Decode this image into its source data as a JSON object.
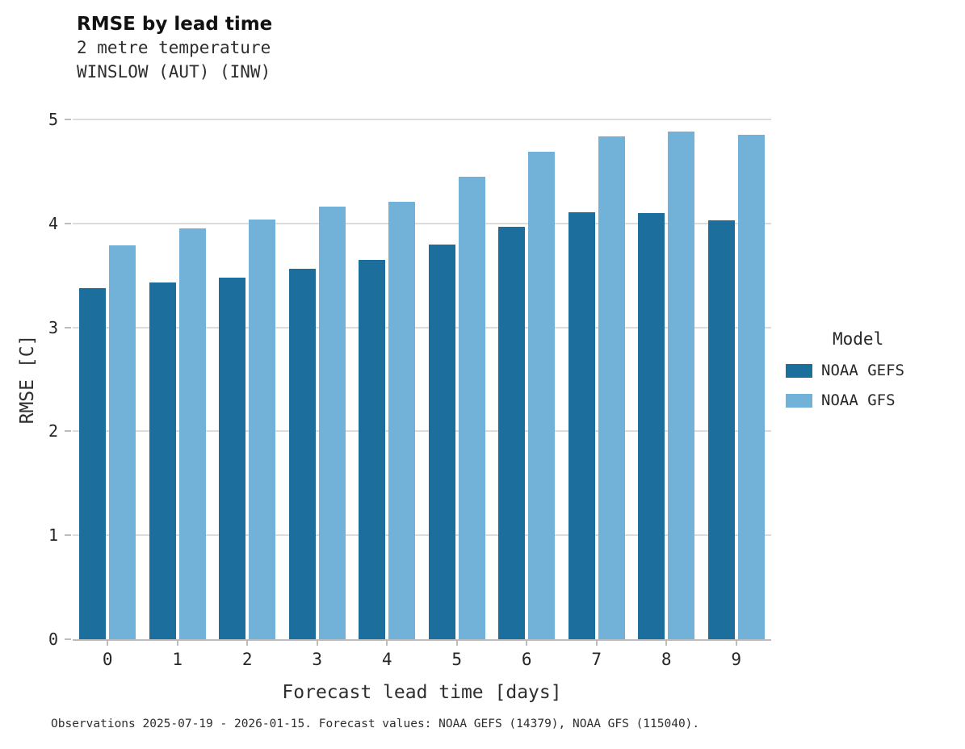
{
  "header": {
    "title": "RMSE by lead time",
    "subtitle_line1": "2 metre temperature",
    "subtitle_line2": "WINSLOW (AUT) (INW)"
  },
  "legend": {
    "title": "Model"
  },
  "caption": "Observations 2025-07-19 - 2026-01-15. Forecast values: NOAA GEFS (14379), NOAA GFS (115040).",
  "colors": {
    "gefs": "#1c6e9c",
    "gfs": "#72b2d8",
    "gridline": "#dcdcdc",
    "axis": "#bdbdbd"
  },
  "chart_data": {
    "type": "bar",
    "title": "RMSE by lead time",
    "subtitle": "2 metre temperature — WINSLOW (AUT) (INW)",
    "xlabel": "Forecast lead time [days]",
    "ylabel": "RMSE [C]",
    "categories": [
      "0",
      "1",
      "2",
      "3",
      "4",
      "5",
      "6",
      "7",
      "8",
      "9"
    ],
    "series": [
      {
        "name": "NOAA GEFS",
        "color": "#1c6e9c",
        "values": [
          3.38,
          3.43,
          3.48,
          3.56,
          3.65,
          3.8,
          3.97,
          4.11,
          4.1,
          4.03
        ]
      },
      {
        "name": "NOAA GFS",
        "color": "#72b2d8",
        "values": [
          3.79,
          3.95,
          4.04,
          4.16,
          4.21,
          4.45,
          4.69,
          4.84,
          4.88,
          4.85
        ]
      }
    ],
    "ylim": [
      0,
      5
    ],
    "yticks": [
      0,
      1,
      2,
      3,
      4,
      5
    ],
    "grid": true,
    "legend_title": "Model",
    "legend_position": "right"
  }
}
